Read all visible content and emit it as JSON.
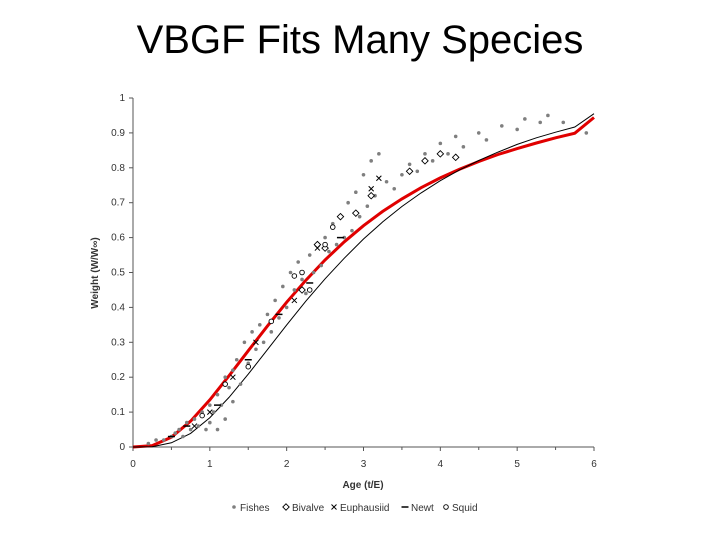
{
  "slide": {
    "title": "VBGF Fits Many Species"
  },
  "chart_data": {
    "type": "scatter",
    "xlabel": "Age (t/E)",
    "ylabel": "Weight (W/W∞)",
    "xlim": [
      0,
      6
    ],
    "ylim": [
      0,
      1
    ],
    "x_ticks": [
      "0",
      "1",
      "2",
      "3",
      "4",
      "5",
      "6"
    ],
    "y_ticks": [
      "0",
      "0.1",
      "0.2",
      "0.3",
      "0.4",
      "0.5",
      "0.6",
      "0.7",
      "0.8",
      "0.9",
      "1"
    ],
    "grid": false,
    "legend_position": "bottom",
    "colors": {
      "fit": "#e00000",
      "fishes": "#7f7f7f",
      "ink": "#000000"
    },
    "series": [
      {
        "name": "Fishes",
        "marker": "dot",
        "points": [
          [
            0.2,
            0.01
          ],
          [
            0.3,
            0.02
          ],
          [
            0.4,
            0.02
          ],
          [
            0.5,
            0.03
          ],
          [
            0.55,
            0.04
          ],
          [
            0.6,
            0.05
          ],
          [
            0.65,
            0.03
          ],
          [
            0.7,
            0.07
          ],
          [
            0.75,
            0.05
          ],
          [
            0.8,
            0.08
          ],
          [
            0.85,
            0.06
          ],
          [
            0.9,
            0.1
          ],
          [
            0.95,
            0.05
          ],
          [
            1.0,
            0.12
          ],
          [
            1.0,
            0.07
          ],
          [
            1.05,
            0.1
          ],
          [
            1.1,
            0.15
          ],
          [
            1.1,
            0.05
          ],
          [
            1.15,
            0.12
          ],
          [
            1.2,
            0.2
          ],
          [
            1.2,
            0.08
          ],
          [
            1.25,
            0.17
          ],
          [
            1.3,
            0.22
          ],
          [
            1.3,
            0.13
          ],
          [
            1.35,
            0.25
          ],
          [
            1.4,
            0.18
          ],
          [
            1.45,
            0.3
          ],
          [
            1.5,
            0.24
          ],
          [
            1.55,
            0.33
          ],
          [
            1.6,
            0.28
          ],
          [
            1.65,
            0.35
          ],
          [
            1.7,
            0.3
          ],
          [
            1.75,
            0.38
          ],
          [
            1.8,
            0.33
          ],
          [
            1.85,
            0.42
          ],
          [
            1.9,
            0.37
          ],
          [
            1.95,
            0.46
          ],
          [
            2.0,
            0.4
          ],
          [
            2.05,
            0.5
          ],
          [
            2.1,
            0.45
          ],
          [
            2.15,
            0.53
          ],
          [
            2.2,
            0.48
          ],
          [
            2.25,
            0.44
          ],
          [
            2.3,
            0.55
          ],
          [
            2.35,
            0.5
          ],
          [
            2.4,
            0.58
          ],
          [
            2.45,
            0.52
          ],
          [
            2.5,
            0.6
          ],
          [
            2.55,
            0.56
          ],
          [
            2.6,
            0.64
          ],
          [
            2.65,
            0.58
          ],
          [
            2.7,
            0.66
          ],
          [
            2.75,
            0.6
          ],
          [
            2.8,
            0.7
          ],
          [
            2.85,
            0.62
          ],
          [
            2.9,
            0.73
          ],
          [
            2.95,
            0.66
          ],
          [
            3.0,
            0.78
          ],
          [
            3.05,
            0.69
          ],
          [
            3.1,
            0.82
          ],
          [
            3.15,
            0.72
          ],
          [
            3.2,
            0.84
          ],
          [
            3.3,
            0.76
          ],
          [
            3.4,
            0.74
          ],
          [
            3.5,
            0.78
          ],
          [
            3.6,
            0.81
          ],
          [
            3.7,
            0.79
          ],
          [
            3.8,
            0.84
          ],
          [
            3.9,
            0.82
          ],
          [
            4.0,
            0.87
          ],
          [
            4.1,
            0.84
          ],
          [
            4.2,
            0.89
          ],
          [
            4.3,
            0.86
          ],
          [
            4.5,
            0.9
          ],
          [
            4.6,
            0.88
          ],
          [
            4.8,
            0.92
          ],
          [
            5.0,
            0.91
          ],
          [
            5.1,
            0.94
          ],
          [
            5.3,
            0.93
          ],
          [
            5.4,
            0.95
          ],
          [
            5.6,
            0.93
          ],
          [
            5.9,
            0.9
          ]
        ]
      },
      {
        "name": "Bivalve",
        "marker": "diamond",
        "points": [
          [
            2.2,
            0.45
          ],
          [
            2.4,
            0.58
          ],
          [
            2.5,
            0.57
          ],
          [
            2.7,
            0.66
          ],
          [
            2.9,
            0.67
          ],
          [
            3.1,
            0.72
          ],
          [
            3.6,
            0.79
          ],
          [
            3.8,
            0.82
          ],
          [
            4.0,
            0.84
          ],
          [
            4.2,
            0.83
          ]
        ]
      },
      {
        "name": "Euphausiid",
        "marker": "x",
        "points": [
          [
            0.8,
            0.06
          ],
          [
            1.0,
            0.1
          ],
          [
            1.3,
            0.2
          ],
          [
            1.6,
            0.3
          ],
          [
            2.1,
            0.42
          ],
          [
            2.4,
            0.57
          ],
          [
            3.1,
            0.74
          ],
          [
            3.2,
            0.77
          ]
        ]
      },
      {
        "name": "Newt",
        "marker": "dash",
        "points": [
          [
            0.5,
            0.03
          ],
          [
            0.7,
            0.06
          ],
          [
            1.1,
            0.12
          ],
          [
            1.5,
            0.25
          ],
          [
            1.9,
            0.38
          ],
          [
            2.3,
            0.47
          ],
          [
            2.7,
            0.6
          ]
        ]
      },
      {
        "name": "Squid",
        "marker": "circle",
        "points": [
          [
            0.9,
            0.09
          ],
          [
            1.2,
            0.18
          ],
          [
            1.5,
            0.23
          ],
          [
            1.8,
            0.36
          ],
          [
            2.1,
            0.49
          ],
          [
            2.2,
            0.5
          ],
          [
            2.3,
            0.45
          ],
          [
            2.5,
            0.58
          ],
          [
            2.6,
            0.63
          ]
        ]
      }
    ],
    "fit_curves": [
      {
        "style": "red-thick",
        "x": [
          0,
          0.25,
          0.5,
          0.75,
          1,
          1.25,
          1.5,
          1.75,
          2,
          2.25,
          2.5,
          2.75,
          3,
          3.25,
          3.5,
          3.75,
          4,
          4.25,
          4.5,
          4.75,
          5,
          5.25,
          5.5,
          5.75,
          6
        ],
        "y": [
          0,
          0.004,
          0.028,
          0.074,
          0.135,
          0.204,
          0.276,
          0.347,
          0.415,
          0.478,
          0.536,
          0.588,
          0.634,
          0.675,
          0.711,
          0.743,
          0.771,
          0.796,
          0.818,
          0.838,
          0.855,
          0.871,
          0.886,
          0.899,
          0.944
        ]
      },
      {
        "style": "black-thin",
        "x": [
          0,
          0.25,
          0.5,
          0.75,
          1,
          1.25,
          1.5,
          1.75,
          2,
          2.25,
          2.5,
          2.75,
          3,
          3.25,
          3.5,
          3.75,
          4,
          4.25,
          4.5,
          4.75,
          5,
          5.25,
          5.5,
          5.75,
          6
        ],
        "y": [
          0,
          0.001,
          0.012,
          0.039,
          0.084,
          0.142,
          0.209,
          0.279,
          0.35,
          0.418,
          0.482,
          0.541,
          0.596,
          0.645,
          0.689,
          0.728,
          0.763,
          0.794,
          0.821,
          0.845,
          0.867,
          0.886,
          0.902,
          0.917,
          0.955
        ]
      }
    ]
  }
}
